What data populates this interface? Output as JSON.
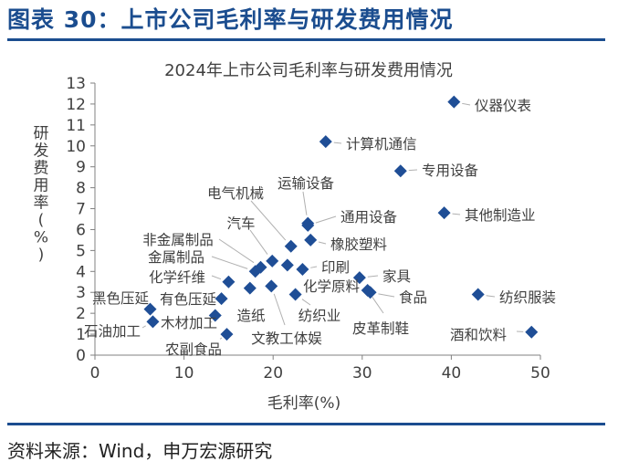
{
  "header": {
    "figure_title": "图表 30：上市公司毛利率与研发费用情况",
    "source": "资料来源：Wind，申万宏源研究"
  },
  "colors": {
    "accent": "#1b4d8f",
    "marker": "#1f4e96",
    "text": "#404040",
    "axis": "#808080"
  },
  "chart_data": {
    "type": "scatter",
    "title": "2024年上市公司毛利率与研发费用情况",
    "xlabel": "毛利率(%)",
    "ylabel": "研发费用率(%)",
    "xlim": [
      0,
      50
    ],
    "ylim": [
      0,
      13
    ],
    "xticks": [
      0,
      10,
      20,
      30,
      40,
      50
    ],
    "yticks": [
      0,
      1,
      2,
      3,
      4,
      5,
      6,
      7,
      8,
      9,
      10,
      11,
      12,
      13
    ],
    "grid": false,
    "points": [
      {
        "name": "仪器仪表",
        "x": 40.3,
        "y": 12.1
      },
      {
        "name": "计算机通信",
        "x": 25.9,
        "y": 10.2
      },
      {
        "name": "专用设备",
        "x": 34.3,
        "y": 8.8
      },
      {
        "name": "其他制造业",
        "x": 39.2,
        "y": 6.8
      },
      {
        "name": "运输设备",
        "x": 23.9,
        "y": 6.3
      },
      {
        "name": "通用设备",
        "x": 23.9,
        "y": 6.2
      },
      {
        "name": "电气机械",
        "x": 22.0,
        "y": 5.2
      },
      {
        "name": "橡胶塑料",
        "x": 24.2,
        "y": 5.5
      },
      {
        "name": "汽车",
        "x": 19.9,
        "y": 4.5
      },
      {
        "name": "非金属制品",
        "x": 18.6,
        "y": 4.2
      },
      {
        "name": "金属制品",
        "x": 18.0,
        "y": 4.0
      },
      {
        "name": "印刷",
        "x": 23.3,
        "y": 4.1
      },
      {
        "name": "化学纤维",
        "x": 15.0,
        "y": 3.5
      },
      {
        "name": "家具",
        "x": 29.7,
        "y": 3.7
      },
      {
        "name": "化学原料",
        "x": 21.6,
        "y": 4.3
      },
      {
        "name": "食品",
        "x": 30.9,
        "y": 3.0
      },
      {
        "name": "文教工体娱",
        "x": 19.8,
        "y": 3.3
      },
      {
        "name": "纺织服装",
        "x": 43.0,
        "y": 2.9
      },
      {
        "name": "黑色压延",
        "x": 6.2,
        "y": 2.2
      },
      {
        "name": "有色压延",
        "x": 14.2,
        "y": 2.7
      },
      {
        "name": "造纸",
        "x": 17.4,
        "y": 3.2
      },
      {
        "name": "纺织业",
        "x": 22.5,
        "y": 2.9
      },
      {
        "name": "皮革制鞋",
        "x": 30.6,
        "y": 3.1
      },
      {
        "name": "石油加工",
        "x": 6.5,
        "y": 1.6
      },
      {
        "name": "木材加工",
        "x": 13.5,
        "y": 1.9
      },
      {
        "name": "农副食品",
        "x": 14.8,
        "y": 1.0
      },
      {
        "name": "酒和饮料",
        "x": 49.0,
        "y": 1.1
      }
    ]
  }
}
